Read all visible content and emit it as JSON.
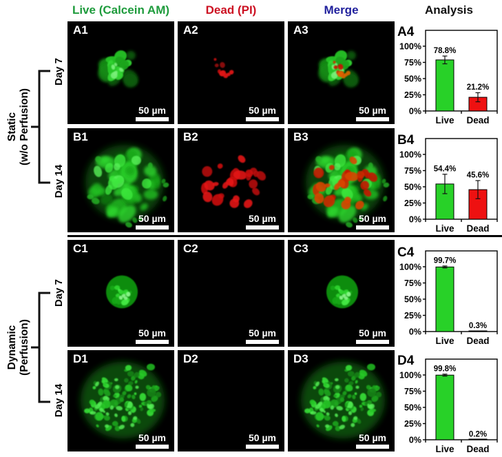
{
  "header": {
    "columns": [
      {
        "label": "Live (Calcein AM)",
        "color": "#1e9b3c"
      },
      {
        "label": "Dead (PI)",
        "color": "#cc1122"
      },
      {
        "label": "Merge",
        "color": "#1f1f9c"
      },
      {
        "label": "Analysis",
        "color": "#111111"
      }
    ]
  },
  "groups": [
    {
      "line1": "Static",
      "line2": "(w/o Perfusion)",
      "rows": [
        {
          "day": "Day 7"
        },
        {
          "day": "Day 14"
        }
      ]
    },
    {
      "line1": "Dynamic",
      "line2": "(Perfusion)",
      "rows": [
        {
          "day": "Day 7"
        },
        {
          "day": "Day 14"
        }
      ]
    }
  ],
  "scale_bar_label": "50 µm",
  "colors": {
    "panel_background": "#000000",
    "live_bar": "#28d128",
    "dead_bar": "#ee1111",
    "micrograph_green": "#2fd72f",
    "micrograph_red": "#cc1111"
  },
  "panels": [
    {
      "id": "A1",
      "content": "green-cluster"
    },
    {
      "id": "A2",
      "content": "red-dots"
    },
    {
      "id": "A3",
      "content": "merge-cluster"
    },
    {
      "id": "B1",
      "content": "green-spheroid-diffuse"
    },
    {
      "id": "B2",
      "content": "red-blobs"
    },
    {
      "id": "B3",
      "content": "merge-spheroid"
    },
    {
      "id": "C1",
      "content": "green-spheroid-small"
    },
    {
      "id": "C2",
      "content": "empty"
    },
    {
      "id": "C3",
      "content": "green-spheroid-small"
    },
    {
      "id": "D1",
      "content": "green-spheroid-large"
    },
    {
      "id": "D2",
      "content": "empty"
    },
    {
      "id": "D3",
      "content": "green-spheroid-large"
    }
  ],
  "chart_data": [
    {
      "id": "A4",
      "type": "bar",
      "categories": [
        "Live",
        "Dead"
      ],
      "values": [
        78.8,
        21.2
      ],
      "value_labels": [
        "78.8%",
        "21.2%"
      ],
      "errors": [
        6,
        7
      ],
      "bar_colors": [
        "#28d128",
        "#ee1111"
      ],
      "y_ticks": [
        "0%",
        "25%",
        "50%",
        "75%",
        "100%"
      ],
      "ylim": [
        0,
        100
      ],
      "xlabel": "",
      "ylabel": "",
      "grid": false,
      "legend": false
    },
    {
      "id": "B4",
      "type": "bar",
      "categories": [
        "Live",
        "Dead"
      ],
      "values": [
        54.4,
        45.6
      ],
      "value_labels": [
        "54.4%",
        "45.6%"
      ],
      "errors": [
        15,
        14
      ],
      "bar_colors": [
        "#28d128",
        "#ee1111"
      ],
      "y_ticks": [
        "0%",
        "25%",
        "50%",
        "75%",
        "100%"
      ],
      "ylim": [
        0,
        100
      ],
      "xlabel": "",
      "ylabel": "",
      "grid": false,
      "legend": false
    },
    {
      "id": "C4",
      "type": "bar",
      "categories": [
        "Live",
        "Dead"
      ],
      "values": [
        99.7,
        0.3
      ],
      "value_labels": [
        "99.7%",
        "0.3%"
      ],
      "errors": [
        1.5,
        0
      ],
      "bar_colors": [
        "#28d128",
        "#ee1111"
      ],
      "y_ticks": [
        "0%",
        "25%",
        "50%",
        "75%",
        "100%"
      ],
      "ylim": [
        0,
        100
      ],
      "xlabel": "",
      "ylabel": "",
      "grid": false,
      "legend": false
    },
    {
      "id": "D4",
      "type": "bar",
      "categories": [
        "Live",
        "Dead"
      ],
      "values": [
        99.8,
        0.2
      ],
      "value_labels": [
        "99.8%",
        "0.2%"
      ],
      "errors": [
        1.5,
        0
      ],
      "bar_colors": [
        "#28d128",
        "#ee1111"
      ],
      "y_ticks": [
        "0%",
        "25%",
        "50%",
        "75%",
        "100%"
      ],
      "ylim": [
        0,
        100
      ],
      "xlabel": "",
      "ylabel": "",
      "grid": false,
      "legend": false
    }
  ]
}
